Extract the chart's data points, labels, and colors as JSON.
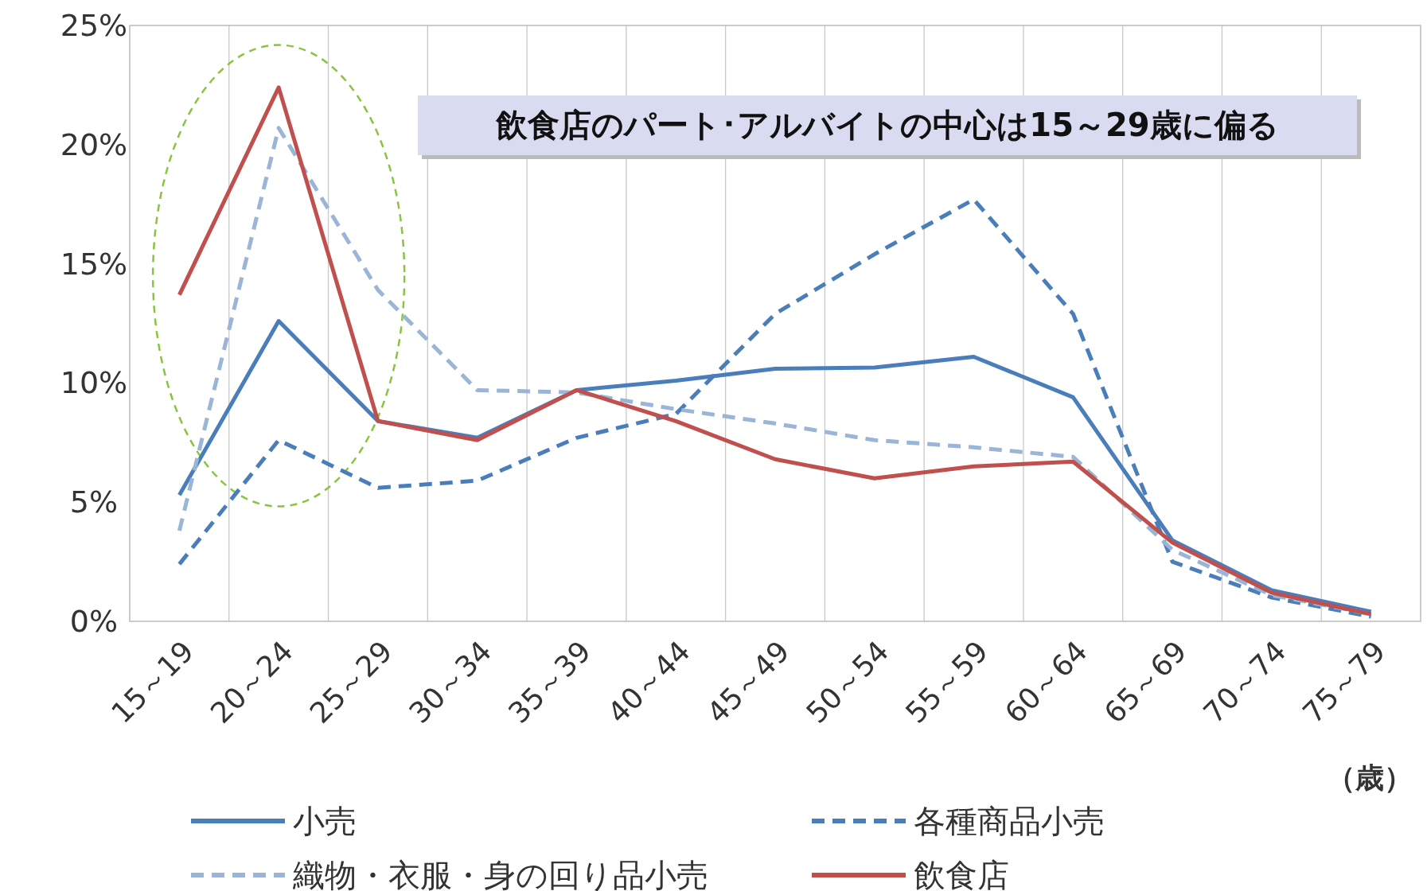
{
  "chart_data": {
    "type": "line",
    "xlabel": "（歳）",
    "categories": [
      "15～19",
      "20～24",
      "25～29",
      "30～34",
      "35～39",
      "40～44",
      "45～49",
      "50～54",
      "55～59",
      "60～64",
      "65～69",
      "70～74",
      "75～79"
    ],
    "series": [
      {
        "name": "小売",
        "color": "#4a7ebb",
        "line_style": "solid",
        "values": [
          5.3,
          12.6,
          8.4,
          7.7,
          9.7,
          10.1,
          10.6,
          10.65,
          11.1,
          9.4,
          3.4,
          1.3,
          0.4
        ]
      },
      {
        "name": "各種商品小売",
        "color": "#4a7ebb",
        "line_style": "dashed",
        "values": [
          2.4,
          7.6,
          5.6,
          5.9,
          7.7,
          8.7,
          12.9,
          15.4,
          17.7,
          12.9,
          2.5,
          1.0,
          0.2
        ]
      },
      {
        "name": "織物・衣服・身の回り品小売",
        "color": "#9bb5d6",
        "line_style": "dashed",
        "values": [
          3.8,
          20.7,
          13.9,
          9.7,
          9.6,
          8.9,
          8.3,
          7.6,
          7.3,
          6.9,
          3.0,
          1.1,
          0.3
        ]
      },
      {
        "name": "飲食店",
        "color": "#c0504d",
        "line_style": "solid",
        "values": [
          13.7,
          22.4,
          8.4,
          7.6,
          9.7,
          8.4,
          6.8,
          6.0,
          6.5,
          6.7,
          3.3,
          1.2,
          0.3
        ]
      }
    ],
    "ylim": [
      0,
      25
    ],
    "yticks": [
      {
        "value": 0,
        "label": "0%"
      },
      {
        "value": 5,
        "label": "5%"
      },
      {
        "value": 10,
        "label": "10%"
      },
      {
        "value": 15,
        "label": "15%"
      },
      {
        "value": 20,
        "label": "20%"
      },
      {
        "value": 25,
        "label": "25%"
      }
    ],
    "grid": "x",
    "legend": "bottom",
    "marker": "none",
    "annotations": [
      "飲食店のパート･アルバイトの中心は15～29歳に偏る"
    ]
  }
}
